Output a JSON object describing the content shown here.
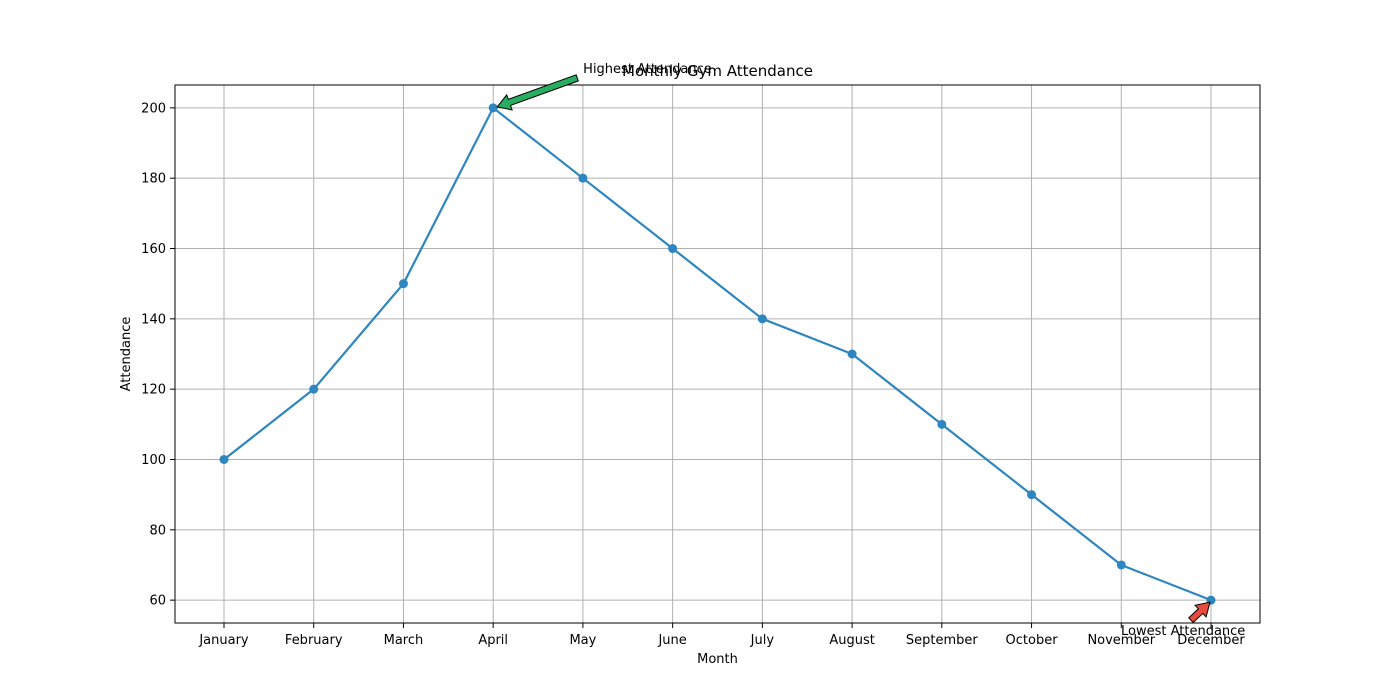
{
  "chart_data": {
    "type": "line",
    "title": "Monthly Gym Attendance",
    "xlabel": "Month",
    "ylabel": "Attendance",
    "categories": [
      "January",
      "February",
      "March",
      "April",
      "May",
      "June",
      "July",
      "August",
      "September",
      "October",
      "November",
      "December"
    ],
    "series": [
      {
        "values": [
          100,
          120,
          150,
          200,
          180,
          160,
          140,
          130,
          110,
          90,
          70,
          60
        ],
        "color": "#2e86c1"
      }
    ],
    "ylim": [
      53.5,
      206.5
    ],
    "yticks": [
      60,
      80,
      100,
      120,
      140,
      160,
      180,
      200
    ],
    "grid": true,
    "annotations": [
      {
        "text": "Highest Attendance",
        "category": "April",
        "value": 200,
        "arrow_color": "#27ae60"
      },
      {
        "text": "Lowest Attendance",
        "category": "December",
        "value": 60,
        "arrow_color": "#e74c3c"
      }
    ]
  }
}
